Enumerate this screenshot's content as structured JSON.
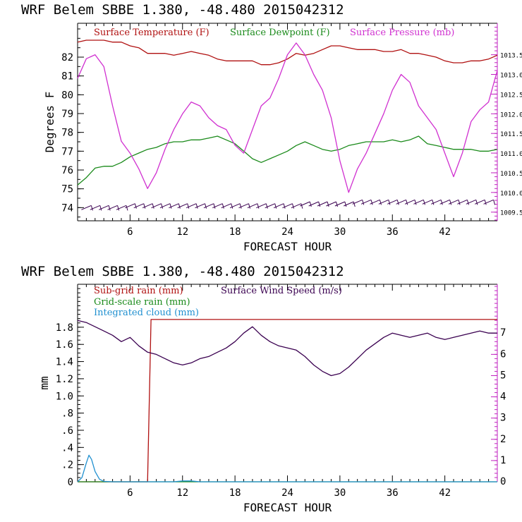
{
  "chart_data": [
    {
      "type": "line",
      "title": "WRF   Belem SBBE     1.380, -48.480  2015042312",
      "xlabel": "FORECAST HOUR",
      "ylabel": "Degrees F",
      "xlim": [
        0,
        48
      ],
      "x_ticks": [
        6,
        12,
        18,
        24,
        30,
        36,
        42
      ],
      "ylim": [
        73.3,
        83.8
      ],
      "y_ticks": [
        74,
        75,
        76,
        77,
        78,
        79,
        80,
        81,
        82
      ],
      "y2lim": [
        1009.28,
        1014.3
      ],
      "y2_ticks": [
        "1009.5",
        "1010.0",
        "1010.5",
        "1011.0",
        "1011.5",
        "1012.0",
        "1012.5",
        "1013.0",
        "1013.5"
      ],
      "legend_placement": "top-left, inside",
      "series": [
        {
          "name": "Surface Temperature (F)",
          "color": "#b01010",
          "axis": "left",
          "x": [
            0,
            1,
            2,
            3,
            4,
            5,
            6,
            7,
            8,
            9,
            10,
            11,
            12,
            13,
            14,
            15,
            16,
            17,
            18,
            19,
            20,
            21,
            22,
            23,
            24,
            25,
            26,
            27,
            28,
            29,
            30,
            31,
            32,
            33,
            34,
            35,
            36,
            37,
            38,
            39,
            40,
            41,
            42,
            43,
            44,
            45,
            46,
            47,
            48
          ],
          "y": [
            82.8,
            82.9,
            82.9,
            82.9,
            82.8,
            82.8,
            82.6,
            82.5,
            82.2,
            82.2,
            82.2,
            82.1,
            82.2,
            82.3,
            82.2,
            82.1,
            81.9,
            81.8,
            81.8,
            81.8,
            81.8,
            81.6,
            81.6,
            81.7,
            81.9,
            82.2,
            82.1,
            82.2,
            82.4,
            82.6,
            82.6,
            82.5,
            82.4,
            82.4,
            82.4,
            82.3,
            82.3,
            82.4,
            82.2,
            82.2,
            82.1,
            82.0,
            81.8,
            81.7,
            81.7,
            81.8,
            81.8,
            81.9,
            82.1
          ]
        },
        {
          "name": "Surface Dewpoint (F)",
          "color": "#1a8a1a",
          "axis": "left",
          "x": [
            0,
            1,
            2,
            3,
            4,
            5,
            6,
            7,
            8,
            9,
            10,
            11,
            12,
            13,
            14,
            15,
            16,
            17,
            18,
            19,
            20,
            21,
            22,
            23,
            24,
            25,
            26,
            27,
            28,
            29,
            30,
            31,
            32,
            33,
            34,
            35,
            36,
            37,
            38,
            39,
            40,
            41,
            42,
            43,
            44,
            45,
            46,
            47,
            48
          ],
          "y": [
            75.2,
            75.6,
            76.1,
            76.2,
            76.2,
            76.4,
            76.7,
            76.9,
            77.1,
            77.2,
            77.4,
            77.5,
            77.5,
            77.6,
            77.6,
            77.7,
            77.8,
            77.6,
            77.4,
            77.0,
            76.6,
            76.4,
            76.6,
            76.8,
            77.0,
            77.3,
            77.5,
            77.3,
            77.1,
            77.0,
            77.1,
            77.3,
            77.4,
            77.5,
            77.5,
            77.5,
            77.6,
            77.5,
            77.6,
            77.8,
            77.4,
            77.3,
            77.2,
            77.1,
            77.1,
            77.1,
            77.0,
            77.0,
            77.1
          ]
        },
        {
          "name": "Surface Pressure (mb)",
          "color": "#d030d0",
          "axis": "right",
          "x": [
            0,
            1,
            2,
            3,
            4,
            5,
            6,
            7,
            8,
            9,
            10,
            11,
            12,
            13,
            14,
            15,
            16,
            17,
            18,
            19,
            20,
            21,
            22,
            23,
            24,
            25,
            26,
            27,
            28,
            29,
            30,
            31,
            32,
            33,
            34,
            35,
            36,
            37,
            38,
            39,
            40,
            41,
            42,
            43,
            44,
            45,
            46,
            47,
            48
          ],
          "y": [
            1012.9,
            1013.4,
            1013.5,
            1013.2,
            1012.2,
            1011.3,
            1011.0,
            1010.6,
            1010.1,
            1010.5,
            1011.1,
            1011.6,
            1012.0,
            1012.3,
            1012.2,
            1011.9,
            1011.7,
            1011.6,
            1011.2,
            1011.0,
            1011.6,
            1012.2,
            1012.4,
            1012.9,
            1013.5,
            1013.8,
            1013.5,
            1013.0,
            1012.6,
            1011.9,
            1010.8,
            1010.0,
            1010.6,
            1011.0,
            1011.5,
            1012.0,
            1012.6,
            1013.0,
            1012.8,
            1012.2,
            1011.9,
            1011.6,
            1011.0,
            1010.4,
            1011.0,
            1011.8,
            1012.1,
            1012.3,
            1013.1
          ]
        },
        {
          "name": "wind barbs",
          "color": "#3a0050",
          "axis": "left",
          "x": [
            1,
            2,
            3,
            4,
            5,
            6,
            7,
            8,
            9,
            10,
            11,
            12,
            13,
            14,
            15,
            16,
            17,
            18,
            19,
            20,
            21,
            22,
            23,
            24,
            25,
            26,
            27,
            28,
            29,
            30,
            31,
            32,
            33,
            34,
            35,
            36,
            37,
            38,
            39,
            40,
            41,
            42,
            43,
            44,
            45,
            46,
            47
          ],
          "y": [
            74.0,
            74.0,
            74.0,
            74.0,
            74.0,
            74.1,
            74.1,
            74.1,
            74.1,
            74.1,
            74.1,
            74.1,
            74.1,
            74.1,
            74.1,
            74.1,
            74.1,
            74.1,
            74.1,
            74.1,
            74.1,
            74.1,
            74.1,
            74.1,
            74.1,
            74.2,
            74.2,
            74.2,
            74.2,
            74.2,
            74.2,
            74.3,
            74.3,
            74.3,
            74.3,
            74.3,
            74.3,
            74.3,
            74.3,
            74.3,
            74.3,
            74.3,
            74.3,
            74.3,
            74.3,
            74.3,
            74.3
          ]
        }
      ]
    },
    {
      "type": "line",
      "title": "WRF   Belem SBBE     1.380, -48.480  2015042312",
      "xlabel": "FORECAST HOUR",
      "ylabel": "mm",
      "xlim": [
        0,
        48
      ],
      "x_ticks": [
        6,
        12,
        18,
        24,
        30,
        36,
        42
      ],
      "ylim": [
        0,
        2.3
      ],
      "y_ticks": [
        "0",
        ".2",
        ".4",
        ".6",
        ".8",
        "1.0",
        "1.2",
        "1.4",
        "1.6",
        "1.8"
      ],
      "y2lim": [
        0,
        9.3
      ],
      "y2_ticks": [
        "0",
        "1",
        "2",
        "3",
        "4",
        "5",
        "6",
        "7"
      ],
      "legend_placement": "top-left, inside",
      "series": [
        {
          "name": "Sub-grid rain (mm)",
          "color": "#b01010",
          "axis": "left",
          "x": [
            0,
            8.0,
            8.4,
            48
          ],
          "y": [
            0,
            0,
            1.89,
            1.89
          ]
        },
        {
          "name": "Grid-scale rain (mm)",
          "color": "#1a8a1a",
          "axis": "left",
          "x": [
            0,
            48
          ],
          "y": [
            0,
            0
          ]
        },
        {
          "name": "Integrated cloud (mm)",
          "color": "#2090d0",
          "axis": "left",
          "x": [
            0,
            0.5,
            1.0,
            1.3,
            1.6,
            2.0,
            2.5,
            3.0,
            4,
            11,
            12,
            13,
            14,
            48
          ],
          "y": [
            0,
            0.05,
            0.22,
            0.31,
            0.26,
            0.12,
            0.03,
            0.005,
            0,
            0,
            0.01,
            0.01,
            0,
            0
          ]
        },
        {
          "name": "Surface Wind Speed (m/s)",
          "color": "#3a0050",
          "axis": "right",
          "x": [
            0,
            1,
            2,
            3,
            4,
            5,
            6,
            7,
            8,
            9,
            10,
            11,
            12,
            13,
            14,
            15,
            16,
            17,
            18,
            19,
            20,
            21,
            22,
            23,
            24,
            25,
            26,
            27,
            28,
            29,
            30,
            31,
            32,
            33,
            34,
            35,
            36,
            37,
            38,
            39,
            40,
            41,
            42,
            43,
            44,
            45,
            46,
            47,
            48
          ],
          "y": [
            7.6,
            7.5,
            7.3,
            7.1,
            6.9,
            6.6,
            6.8,
            6.4,
            6.1,
            6.0,
            5.8,
            5.6,
            5.5,
            5.6,
            5.8,
            5.9,
            6.1,
            6.3,
            6.6,
            7.0,
            7.3,
            6.9,
            6.6,
            6.4,
            6.3,
            6.2,
            5.9,
            5.5,
            5.2,
            5.0,
            5.1,
            5.4,
            5.8,
            6.2,
            6.5,
            6.8,
            7.0,
            6.9,
            6.8,
            6.9,
            7.0,
            6.8,
            6.7,
            6.8,
            6.9,
            7.0,
            7.1,
            7.0,
            7.0
          ]
        }
      ]
    }
  ]
}
